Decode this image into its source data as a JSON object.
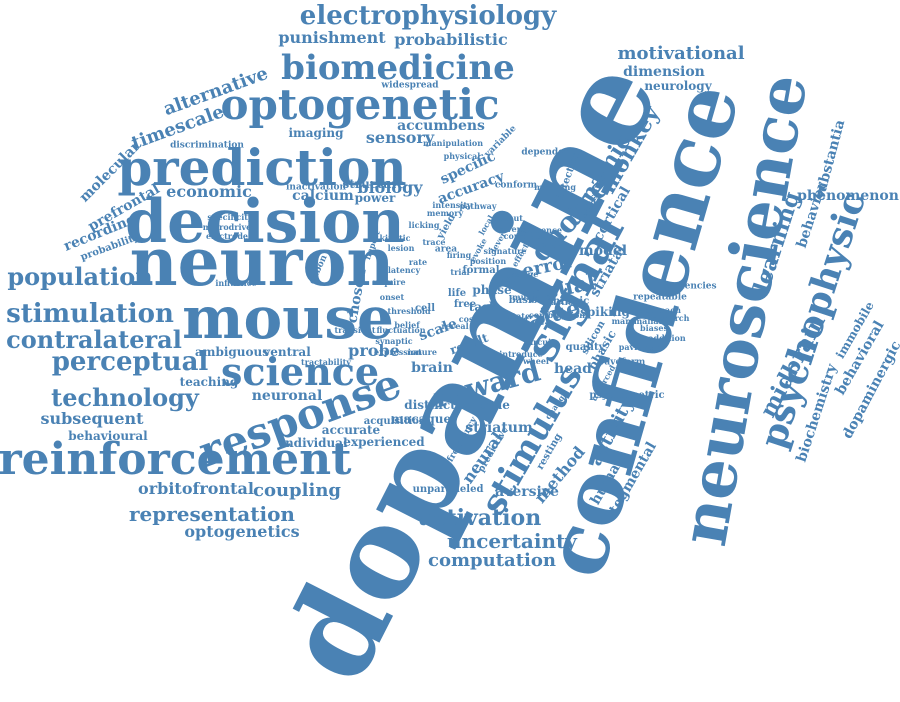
{
  "colors": {
    "word": "#4a82b4",
    "background": "#ffffff"
  },
  "words": [
    "dopamine",
    "confidence",
    "neuroscience",
    "neuron",
    "decision",
    "mouse",
    "prediction",
    "signal",
    "psychophysic",
    "optogenetic",
    "reinforcement",
    "biomedicine",
    "stimulus",
    "response",
    "science",
    "choice",
    "electrophysiology",
    "population",
    "stimulation",
    "contralateral",
    "perceptual",
    "technology",
    "reward",
    "activation",
    "uncertainty",
    "midbrain",
    "learning",
    "dynamic",
    "monkey",
    "value",
    "visual",
    "representation",
    "coupling",
    "orbitofrontal",
    "optogenetics",
    "computation",
    "activity",
    "motivational",
    "dimension",
    "neurology",
    "substantia",
    "phenomenon",
    "timescale",
    "alternative",
    "punishment",
    "probabilistic",
    "accumbens",
    "sensory",
    "economic",
    "biology",
    "recording",
    "prefrontal",
    "molecular",
    "subsequent",
    "behavioural",
    "error",
    "cortical",
    "behavior",
    "biochemistry",
    "behavioral",
    "dopaminergic",
    "immobile",
    "method",
    "human",
    "aversive",
    "neural",
    "striatum",
    "probe",
    "head",
    "accurate",
    "experienced",
    "individual",
    "neuronal",
    "ambiguous",
    "teaching",
    "ventral",
    "brain",
    "imaging",
    "specific",
    "accuracy",
    "calcium",
    "power",
    "structure",
    "chosen",
    "model",
    "striatal",
    "tegmental",
    "spiking",
    "distinct",
    "macaque",
    "encode",
    "scale",
    "result",
    "phasic",
    "psychometric",
    "quality",
    "waveform",
    "probability",
    "discrimination",
    "inactivation",
    "widespread",
    "task",
    "phase",
    "formal",
    "fast",
    "life",
    "free",
    "cell",
    "basis",
    "chronic",
    "silicon",
    "detection",
    "variable",
    "conform",
    "maturing",
    "dependent",
    "outcome",
    "repeatable",
    "frequencies",
    "approach",
    "pavlovian",
    "acquisition",
    "frequency",
    "unparalleled",
    "predictive",
    "resting",
    "gabon",
    "action",
    "belief",
    "state",
    "transient",
    "microdrive",
    "electrode",
    "specificity",
    "mammalian",
    "tractability",
    "yield",
    "area",
    "influence",
    "addition",
    "threshold",
    "fluctuation",
    "synaptic",
    "onset",
    "nature",
    "manipulation",
    "physical",
    "unforced",
    "circuit",
    "combination",
    "biases",
    "change",
    "import",
    "research",
    "wheel",
    "multiple",
    "sequence",
    "introduce",
    "require",
    "expression",
    "trial",
    "reveal",
    "cost",
    "rate",
    "evoke",
    "firing",
    "lever",
    "trace",
    "local",
    "lesion",
    "latency",
    "signature",
    "kinetic",
    "effect",
    "correlate",
    "intensity",
    "licking",
    "pathway",
    "reverse",
    "memory",
    "output",
    "position",
    "saline"
  ]
}
